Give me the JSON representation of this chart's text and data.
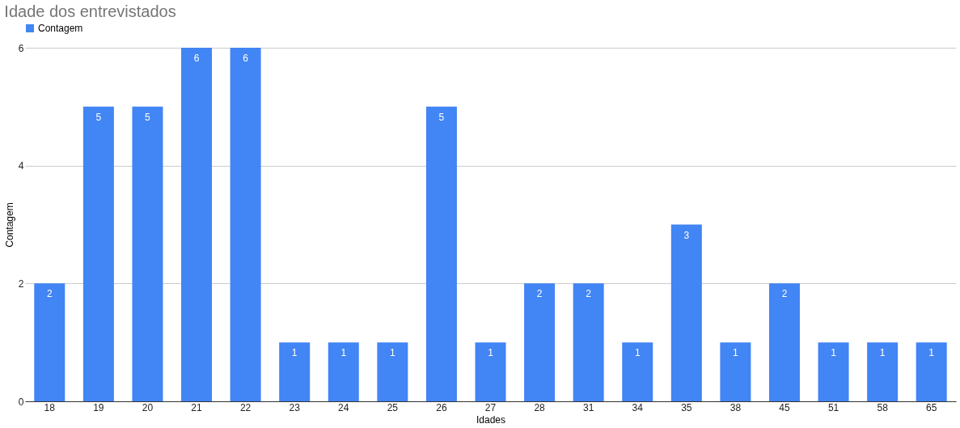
{
  "chart_data": {
    "type": "bar",
    "title": "Idade dos entrevistados",
    "xlabel": "Idades",
    "ylabel": "Contagem",
    "categories": [
      "18",
      "19",
      "20",
      "21",
      "22",
      "23",
      "24",
      "25",
      "26",
      "27",
      "28",
      "31",
      "34",
      "35",
      "38",
      "45",
      "51",
      "58",
      "65"
    ],
    "series": [
      {
        "name": "Contagem",
        "color": "#4285f4",
        "values": [
          2,
          5,
          5,
          6,
          6,
          1,
          1,
          1,
          5,
          1,
          2,
          2,
          1,
          3,
          1,
          2,
          1,
          1,
          1
        ]
      }
    ],
    "ylim": [
      0,
      6
    ],
    "yticks": [
      0,
      2,
      4,
      6
    ],
    "grid": "y",
    "legend": "top",
    "data_labels": true
  }
}
